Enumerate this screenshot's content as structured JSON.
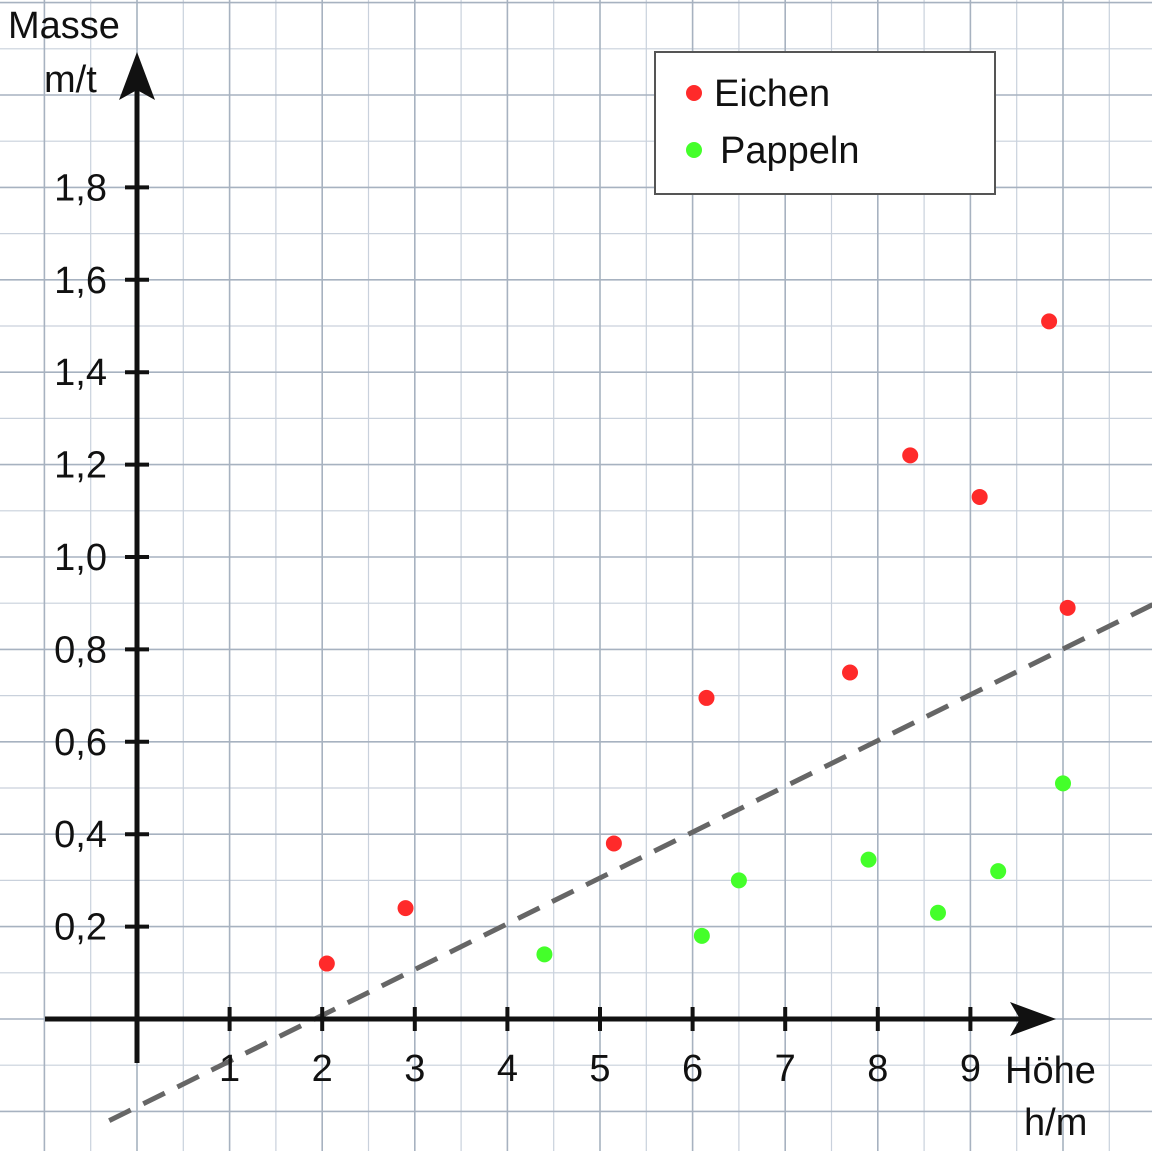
{
  "chart_data": {
    "type": "scatter",
    "title": "",
    "y_axis": {
      "title_line1": "Masse",
      "title_line2": "m/t"
    },
    "x_axis": {
      "title_line1": "Höhe",
      "title_line2": "h/m"
    },
    "xlim": [
      -1,
      10
    ],
    "ylim": [
      -0.1,
      2.2
    ],
    "grid": true,
    "legend_position": "top-right",
    "x_ticks": [
      {
        "value": 1,
        "label": "1"
      },
      {
        "value": 2,
        "label": "2"
      },
      {
        "value": 3,
        "label": "3"
      },
      {
        "value": 4,
        "label": "4"
      },
      {
        "value": 5,
        "label": "5"
      },
      {
        "value": 6,
        "label": "6"
      },
      {
        "value": 7,
        "label": "7"
      },
      {
        "value": 8,
        "label": "8"
      },
      {
        "value": 9,
        "label": "9"
      }
    ],
    "y_ticks": [
      {
        "value": 0.2,
        "label": "0,2"
      },
      {
        "value": 0.4,
        "label": "0,4"
      },
      {
        "value": 0.6,
        "label": "0,6"
      },
      {
        "value": 0.8,
        "label": "0,8"
      },
      {
        "value": 1.0,
        "label": "1,0"
      },
      {
        "value": 1.2,
        "label": "1,2"
      },
      {
        "value": 1.4,
        "label": "1,4"
      },
      {
        "value": 1.6,
        "label": "1,6"
      },
      {
        "value": 1.8,
        "label": "1,8"
      }
    ],
    "series": [
      {
        "name": "Eichen",
        "color": "#ff2a2a",
        "points": [
          {
            "x": 2.05,
            "y": 0.12
          },
          {
            "x": 2.9,
            "y": 0.24
          },
          {
            "x": 5.15,
            "y": 0.38
          },
          {
            "x": 6.15,
            "y": 0.695
          },
          {
            "x": 7.7,
            "y": 0.75
          },
          {
            "x": 8.35,
            "y": 1.22
          },
          {
            "x": 9.1,
            "y": 1.13
          },
          {
            "x": 9.85,
            "y": 1.51
          },
          {
            "x": 10.05,
            "y": 0.89
          }
        ]
      },
      {
        "name": "Pappeln",
        "color": "#44ff2a",
        "points": [
          {
            "x": 4.4,
            "y": 0.14
          },
          {
            "x": 6.1,
            "y": 0.18
          },
          {
            "x": 6.5,
            "y": 0.3
          },
          {
            "x": 7.9,
            "y": 0.345
          },
          {
            "x": 8.65,
            "y": 0.23
          },
          {
            "x": 9.3,
            "y": 0.32
          },
          {
            "x": 10.0,
            "y": 0.51
          }
        ]
      }
    ],
    "trend_line": {
      "color": "#666666",
      "style": "dashed",
      "points": [
        {
          "x": -0.3,
          "y": -0.22
        },
        {
          "x": 11.0,
          "y": 0.9
        }
      ]
    }
  }
}
